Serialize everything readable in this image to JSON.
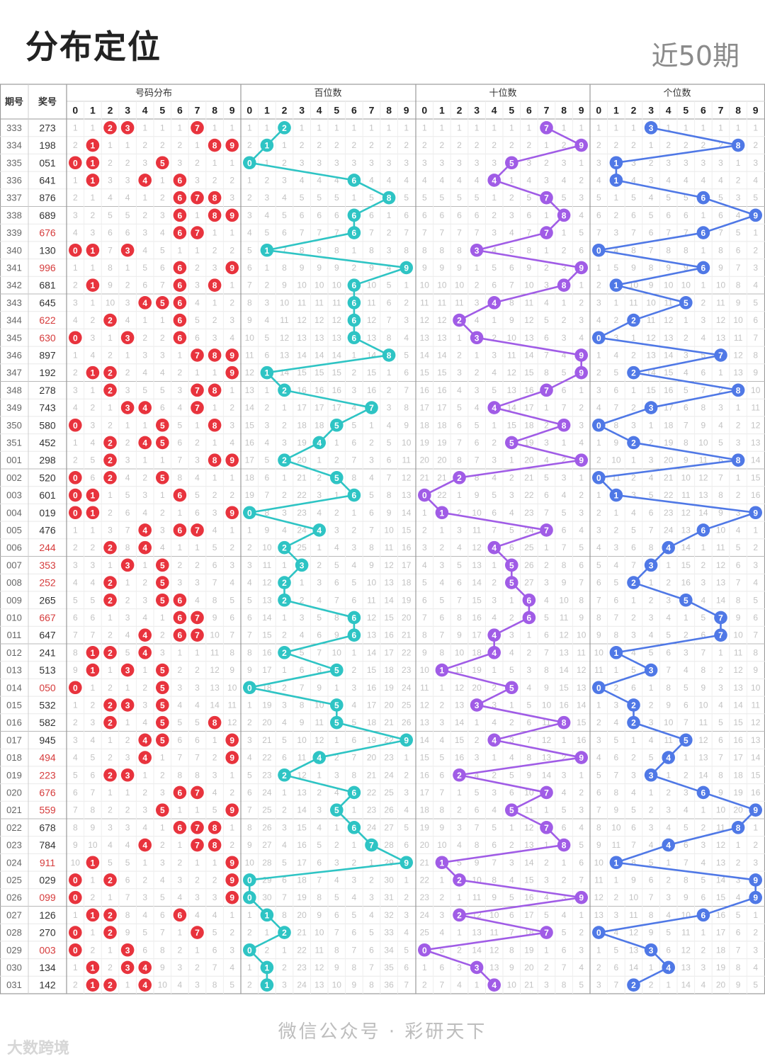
{
  "header": {
    "title": "分布定位",
    "range_label": "近50期"
  },
  "footer": {
    "text": "微信公众号 · 彩研天下",
    "watermark": "大数跨境"
  },
  "colors": {
    "dist": "#e8333d",
    "hundreds": "#2ec4c4",
    "tens": "#a05ce6",
    "units": "#4f78e6",
    "odd_issue": "#d63c3c"
  },
  "table": {
    "col_issue": "期号",
    "col_number": "奖号",
    "groups": [
      "号码分布",
      "百位数",
      "十位数",
      "个位数"
    ],
    "digits": [
      "0",
      "1",
      "2",
      "3",
      "4",
      "5",
      "6",
      "7",
      "8",
      "9"
    ]
  },
  "chart_data": {
    "type": "table",
    "issues": [
      "333",
      "334",
      "335",
      "336",
      "337",
      "338",
      "339",
      "340",
      "341",
      "342",
      "343",
      "344",
      "345",
      "346",
      "347",
      "348",
      "349",
      "350",
      "351",
      "001",
      "002",
      "003",
      "004",
      "005",
      "006",
      "007",
      "008",
      "009",
      "010",
      "011",
      "012",
      "013",
      "014",
      "015",
      "016",
      "017",
      "018",
      "019",
      "020",
      "021",
      "022",
      "023",
      "024",
      "025",
      "026",
      "027",
      "028",
      "029",
      "030",
      "031"
    ],
    "numbers": [
      "273",
      "198",
      "051",
      "641",
      "876",
      "689",
      "676",
      "130",
      "996",
      "681",
      "645",
      "622",
      "630",
      "897",
      "192",
      "278",
      "743",
      "580",
      "452",
      "298",
      "520",
      "601",
      "019",
      "476",
      "244",
      "353",
      "252",
      "265",
      "667",
      "647",
      "241",
      "513",
      "050",
      "532",
      "582",
      "945",
      "494",
      "223",
      "676",
      "559",
      "678",
      "784",
      "911",
      "029",
      "099",
      "126",
      "270",
      "003",
      "134",
      "142"
    ],
    "number_colors": [
      "dark",
      "dark",
      "dark",
      "dark",
      "dark",
      "dark",
      "red",
      "dark",
      "red",
      "dark",
      "dark",
      "red",
      "red",
      "dark",
      "dark",
      "dark",
      "dark",
      "dark",
      "dark",
      "dark",
      "dark",
      "dark",
      "dark",
      "dark",
      "red",
      "red",
      "red",
      "dark",
      "red",
      "dark",
      "dark",
      "dark",
      "red",
      "dark",
      "dark",
      "dark",
      "red",
      "red",
      "red",
      "red",
      "dark",
      "dark",
      "red",
      "dark",
      "red",
      "dark",
      "dark",
      "red",
      "dark",
      "dark"
    ]
  }
}
